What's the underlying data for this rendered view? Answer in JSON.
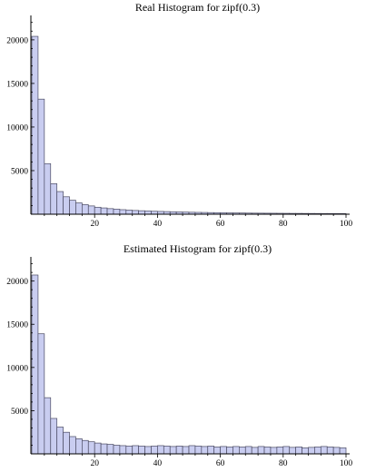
{
  "chart_data": [
    {
      "type": "bar",
      "title": "Real Histogram for zipf(0.3)",
      "xlabel": "",
      "ylabel": "",
      "xlim": [
        0,
        100
      ],
      "ylim": [
        0,
        22800
      ],
      "x_ticks": [
        20,
        40,
        60,
        80,
        100
      ],
      "y_ticks": [
        5000,
        10000,
        15000,
        20000
      ],
      "bin_width": 2,
      "bin_starts": [
        0,
        2,
        4,
        6,
        8,
        10,
        12,
        14,
        16,
        18,
        20,
        22,
        24,
        26,
        28,
        30,
        32,
        34,
        36,
        38,
        40,
        42,
        44,
        46,
        48,
        50,
        52,
        54,
        56,
        58,
        60,
        62,
        64,
        66,
        68,
        70,
        72,
        74,
        76,
        78,
        80,
        82,
        84,
        86,
        88,
        90,
        92,
        94,
        96,
        98
      ],
      "values": [
        20400,
        13200,
        5800,
        3500,
        2600,
        2000,
        1600,
        1300,
        1100,
        950,
        800,
        720,
        640,
        580,
        520,
        470,
        430,
        400,
        370,
        340,
        320,
        300,
        280,
        260,
        240,
        225,
        210,
        200,
        185,
        175,
        165,
        155,
        145,
        140,
        130,
        125,
        120,
        115,
        110,
        105,
        100,
        95,
        92,
        88,
        85,
        82,
        80,
        78,
        76,
        74
      ]
    },
    {
      "type": "bar",
      "title": "Estimated Histogram for zipf(0.3)",
      "xlabel": "",
      "ylabel": "",
      "xlim": [
        0,
        100
      ],
      "ylim": [
        0,
        22800
      ],
      "x_ticks": [
        20,
        40,
        60,
        80,
        100
      ],
      "y_ticks": [
        5000,
        10000,
        15000,
        20000
      ],
      "bin_width": 2,
      "bin_starts": [
        0,
        2,
        4,
        6,
        8,
        10,
        12,
        14,
        16,
        18,
        20,
        22,
        24,
        26,
        28,
        30,
        32,
        34,
        36,
        38,
        40,
        42,
        44,
        46,
        48,
        50,
        52,
        54,
        56,
        58,
        60,
        62,
        64,
        66,
        68,
        70,
        72,
        74,
        76,
        78,
        80,
        82,
        84,
        86,
        88,
        90,
        92,
        94,
        96,
        98
      ],
      "values": [
        20700,
        13900,
        6500,
        4100,
        3100,
        2500,
        2000,
        1750,
        1550,
        1400,
        1250,
        1150,
        1100,
        1000,
        950,
        900,
        950,
        900,
        850,
        900,
        950,
        900,
        850,
        900,
        850,
        950,
        900,
        850,
        900,
        800,
        850,
        800,
        850,
        800,
        850,
        750,
        850,
        800,
        750,
        800,
        850,
        750,
        800,
        700,
        750,
        800,
        850,
        800,
        750,
        700
      ]
    }
  ]
}
